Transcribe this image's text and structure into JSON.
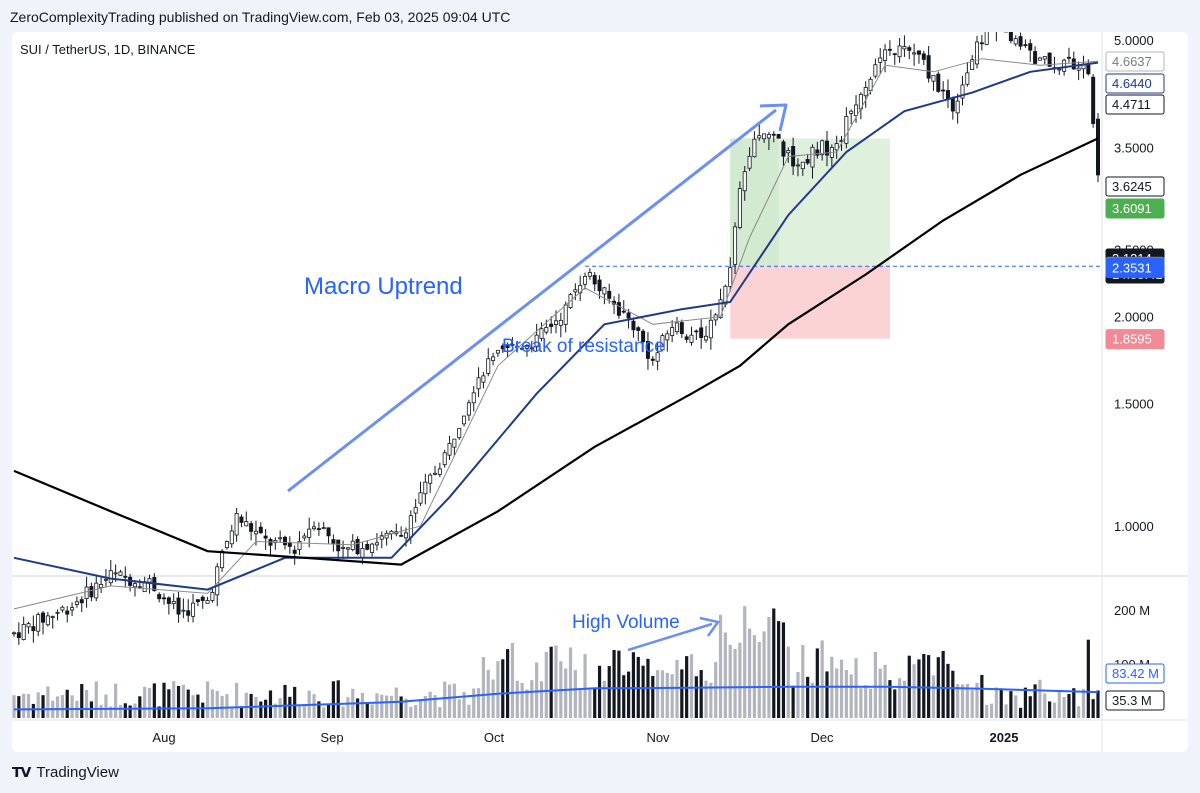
{
  "header": {
    "publisher_line": "ZeroComplexityTrading published on TradingView.com, Feb 03, 2025 09:04 UTC"
  },
  "chart_header": {
    "symbol_line": "SUI / TetherUS, 1D, BINANCE"
  },
  "footer": {
    "brand": "TradingView",
    "logo_icon": "tradingview-logo-icon"
  },
  "colors": {
    "up_candle": "#ffffff",
    "down_candle": "#131722",
    "ema_fast": "#8a8a8a",
    "ema_mid": "#1e3a8a",
    "ema_slow": "#000000",
    "volume_avg": "#2962ff",
    "annotation": "#2962ff",
    "target_zone": "#dff0dd",
    "stop_zone": "#fbd3d5",
    "label_green": "#4caf50",
    "label_red": "#f08a95",
    "label_blue": "#2962ff"
  },
  "chart_data": {
    "type": "candlestick",
    "interval": "1D",
    "price_axis": {
      "ticks": [
        "5.0000",
        "4.0000",
        "3.5000",
        "2.5000",
        "2.0000",
        "1.5000",
        "1.0000"
      ],
      "tick_values": [
        5.0,
        4.0,
        3.5,
        2.5,
        2.0,
        1.5,
        1.0
      ],
      "scale": "log"
    },
    "time_axis": {
      "labels": [
        "Aug",
        "Sep",
        "Oct",
        "Nov",
        "Dec",
        "2025"
      ]
    },
    "price_labels": [
      {
        "text": "4.6637",
        "value": 4.6637,
        "style": "gray-outline"
      },
      {
        "text": "4.6440",
        "value": 4.644,
        "style": "navy-outline"
      },
      {
        "text": "4.4711",
        "value": 4.4711,
        "style": "black-outline"
      },
      {
        "text": "3.6245",
        "value": 3.6245,
        "style": "black-outline"
      },
      {
        "text": "3.6091",
        "value": 3.6091,
        "style": "green-fill"
      },
      {
        "text": "3.1314",
        "countdown": "14:55:41",
        "value": 3.1314,
        "style": "black-fill"
      },
      {
        "text": "2.3633",
        "value": 2.3633,
        "style": "gray-fill"
      },
      {
        "text": "2.3531",
        "value": 2.3531,
        "style": "blue-fill"
      },
      {
        "text": "1.8595",
        "value": 1.8595,
        "style": "red-fill"
      }
    ],
    "volume_axis": {
      "ticks": [
        "200 M",
        "100 M"
      ],
      "tick_values": [
        200,
        100
      ]
    },
    "volume_labels": [
      {
        "text": "83.42 M",
        "value": 83.42,
        "style": "blue-outline"
      },
      {
        "text": "35.3 M",
        "value": 35.3,
        "style": "black-outline"
      }
    ],
    "resistance_level": 2.3633,
    "position": {
      "entry": 2.3633,
      "target": 3.6091,
      "stop": 1.8595
    },
    "annotations": [
      {
        "text": "Macro Uptrend",
        "kind": "text"
      },
      {
        "text": "Break of resistance",
        "kind": "text"
      },
      {
        "text": "High Volume",
        "kind": "text"
      }
    ],
    "price_series": [
      {
        "name": "price-path",
        "points": [
          [
            0,
            0.7
          ],
          [
            12,
            0.77
          ],
          [
            20,
            0.85
          ],
          [
            28,
            0.83
          ],
          [
            34,
            0.75
          ],
          [
            40,
            0.78
          ],
          [
            46,
            1.03
          ],
          [
            52,
            0.95
          ],
          [
            58,
            0.93
          ],
          [
            62,
            1.02
          ],
          [
            68,
            0.92
          ],
          [
            76,
            0.96
          ],
          [
            80,
            0.97
          ],
          [
            84,
            1.1
          ],
          [
            90,
            1.3
          ],
          [
            96,
            1.65
          ],
          [
            102,
            1.8
          ],
          [
            108,
            1.85
          ],
          [
            114,
            2.05
          ],
          [
            118,
            2.33
          ],
          [
            122,
            2.15
          ],
          [
            128,
            1.95
          ],
          [
            132,
            1.72
          ],
          [
            136,
            1.95
          ],
          [
            142,
            1.85
          ],
          [
            146,
            2.1
          ],
          [
            148,
            2.3
          ],
          [
            150,
            3.0
          ],
          [
            154,
            3.7
          ],
          [
            158,
            3.55
          ],
          [
            162,
            3.3
          ],
          [
            166,
            3.5
          ],
          [
            170,
            3.5
          ],
          [
            174,
            4.1
          ],
          [
            178,
            4.6
          ],
          [
            182,
            4.85
          ],
          [
            186,
            4.8
          ],
          [
            190,
            4.4
          ],
          [
            194,
            4.0
          ],
          [
            198,
            4.7
          ],
          [
            202,
            5.3
          ],
          [
            206,
            5.1
          ],
          [
            212,
            4.64
          ],
          [
            218,
            4.6
          ],
          [
            222,
            4.5
          ],
          [
            224,
            3.13
          ]
        ]
      },
      {
        "name": "ema-fast",
        "points": [
          [
            0,
            0.76
          ],
          [
            20,
            0.82
          ],
          [
            40,
            0.8
          ],
          [
            50,
            0.95
          ],
          [
            70,
            0.94
          ],
          [
            84,
            1.0
          ],
          [
            100,
            1.7
          ],
          [
            118,
            2.2
          ],
          [
            132,
            1.95
          ],
          [
            146,
            2.0
          ],
          [
            152,
            2.6
          ],
          [
            160,
            3.4
          ],
          [
            170,
            3.45
          ],
          [
            180,
            4.6
          ],
          [
            190,
            4.5
          ],
          [
            200,
            4.7
          ],
          [
            212,
            4.6
          ],
          [
            224,
            4.66
          ]
        ]
      },
      {
        "name": "ema-mid",
        "points": [
          [
            0,
            0.9
          ],
          [
            20,
            0.84
          ],
          [
            40,
            0.81
          ],
          [
            56,
            0.9
          ],
          [
            78,
            0.9
          ],
          [
            90,
            1.1
          ],
          [
            108,
            1.55
          ],
          [
            122,
            1.95
          ],
          [
            138,
            2.05
          ],
          [
            148,
            2.1
          ],
          [
            160,
            2.8
          ],
          [
            172,
            3.45
          ],
          [
            184,
            3.95
          ],
          [
            198,
            4.2
          ],
          [
            210,
            4.5
          ],
          [
            224,
            4.64
          ]
        ]
      },
      {
        "name": "ema-slow",
        "points": [
          [
            0,
            1.2
          ],
          [
            20,
            1.05
          ],
          [
            40,
            0.92
          ],
          [
            60,
            0.9
          ],
          [
            80,
            0.88
          ],
          [
            100,
            1.05
          ],
          [
            120,
            1.3
          ],
          [
            140,
            1.55
          ],
          [
            150,
            1.7
          ],
          [
            160,
            1.95
          ],
          [
            176,
            2.3
          ],
          [
            192,
            2.75
          ],
          [
            208,
            3.2
          ],
          [
            224,
            3.61
          ]
        ]
      }
    ]
  }
}
